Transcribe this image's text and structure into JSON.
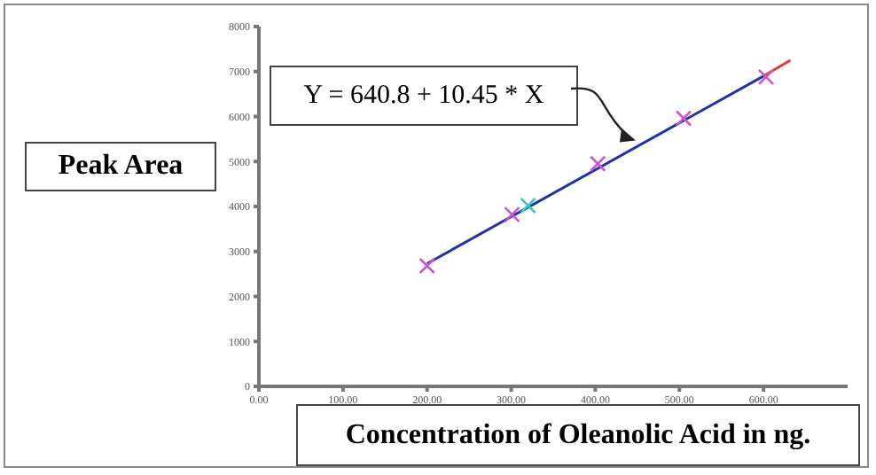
{
  "chart_data": {
    "type": "scatter",
    "xlabel": "Concentration of Oleanolic Acid in ng.",
    "ylabel": "Peak Area",
    "annotations": [
      {
        "text": "Y = 640.8 + 10.45 * X",
        "x": 448,
        "y": 5470
      }
    ],
    "xlim": [
      0,
      700
    ],
    "xticks": [
      {
        "value": 0,
        "label": "0.00"
      },
      {
        "value": 100,
        "label": "100.00"
      },
      {
        "value": 200,
        "label": "200.00"
      },
      {
        "value": 300,
        "label": "300.00"
      },
      {
        "value": 400,
        "label": "400.00"
      },
      {
        "value": 500,
        "label": "500.00"
      },
      {
        "value": 600,
        "label": "600.00"
      }
    ],
    "ylim": [
      0,
      8000
    ],
    "yticks": [
      0,
      1000,
      2000,
      3000,
      4000,
      5000,
      6000,
      7000,
      8000
    ],
    "grid": false,
    "legend": false,
    "marker": "cross",
    "series": [
      {
        "type": "line",
        "color": "#ee3333",
        "x": [
          600,
          632
        ],
        "values": [
          6900,
          7250
        ]
      },
      {
        "type": "line",
        "color": "#2233aa",
        "x": [
          200,
          600
        ],
        "values": [
          2730,
          6900
        ]
      },
      {
        "color": "#cc55cc",
        "x": [
          200,
          301,
          403,
          505,
          603
        ],
        "values": [
          2680,
          3820,
          4950,
          5960,
          6880
        ]
      },
      {
        "color": "#33cccc",
        "x": [
          320
        ],
        "values": [
          4020
        ]
      }
    ]
  }
}
